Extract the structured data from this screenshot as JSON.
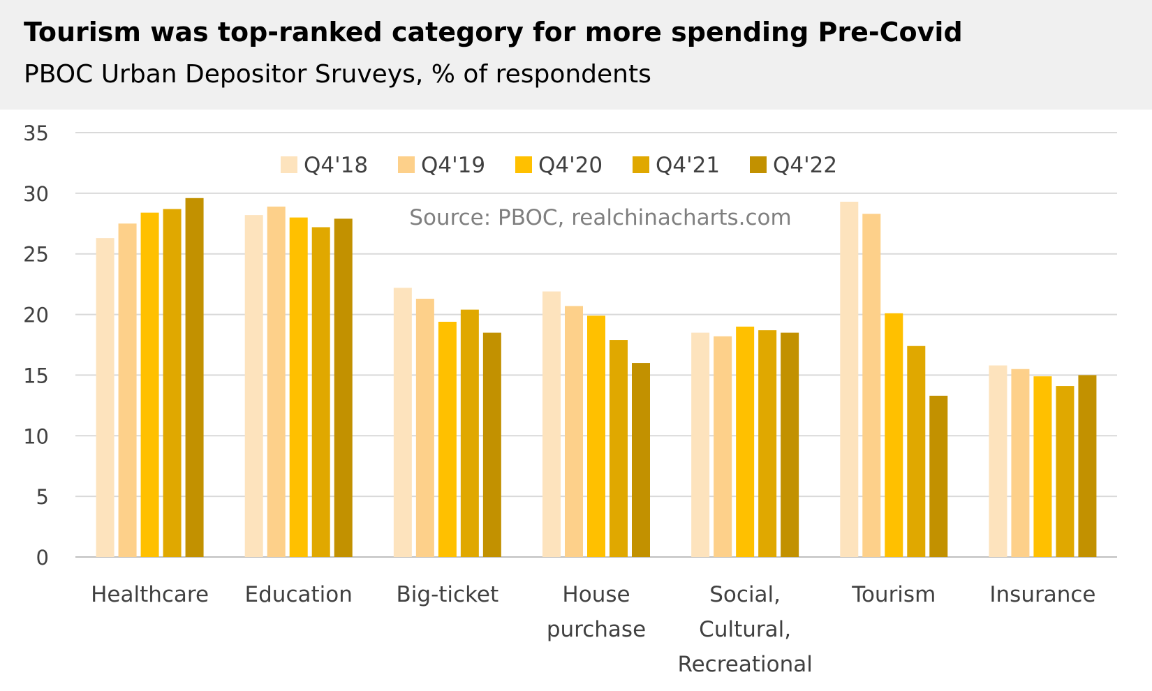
{
  "header": {
    "title": "Tourism was top-ranked category for more spending Pre-Covid",
    "subtitle": "PBOC Urban Depositor Sruveys, % of respondents"
  },
  "annotation": "Source: PBOC, realchinacharts.com",
  "chart_data": {
    "type": "bar",
    "title": "Tourism was top-ranked category for more spending Pre-Covid",
    "subtitle": "PBOC Urban Depositor Sruveys, % of respondents",
    "categories": [
      [
        "Healthcare"
      ],
      [
        "Education"
      ],
      [
        "Big-ticket"
      ],
      [
        "House",
        "purchase"
      ],
      [
        "Social,",
        "Cultural,",
        "Recreational"
      ],
      [
        "Tourism"
      ],
      [
        "Insurance"
      ]
    ],
    "series": [
      {
        "name": "Q4'18",
        "color": "#fde3bd",
        "values": [
          26.3,
          28.2,
          22.2,
          21.9,
          18.5,
          29.3,
          15.8
        ]
      },
      {
        "name": "Q4'19",
        "color": "#fdd08a",
        "values": [
          27.5,
          28.9,
          21.3,
          20.7,
          18.2,
          28.3,
          15.5
        ]
      },
      {
        "name": "Q4'20",
        "color": "#ffc000",
        "values": [
          28.4,
          28.0,
          19.4,
          19.9,
          19.0,
          20.1,
          14.9
        ]
      },
      {
        "name": "Q4'21",
        "color": "#e0a800",
        "values": [
          28.7,
          27.2,
          20.4,
          17.9,
          18.7,
          17.4,
          14.1
        ]
      },
      {
        "name": "Q4'22",
        "color": "#c29100",
        "values": [
          29.6,
          27.9,
          18.5,
          16.0,
          18.5,
          13.3,
          15.0
        ]
      }
    ],
    "yticks": [
      0,
      5,
      10,
      15,
      20,
      25,
      30,
      35
    ],
    "ylim": [
      0,
      35
    ],
    "xlabel": "",
    "ylabel": "",
    "grid": true,
    "legend_position": "top-center"
  }
}
